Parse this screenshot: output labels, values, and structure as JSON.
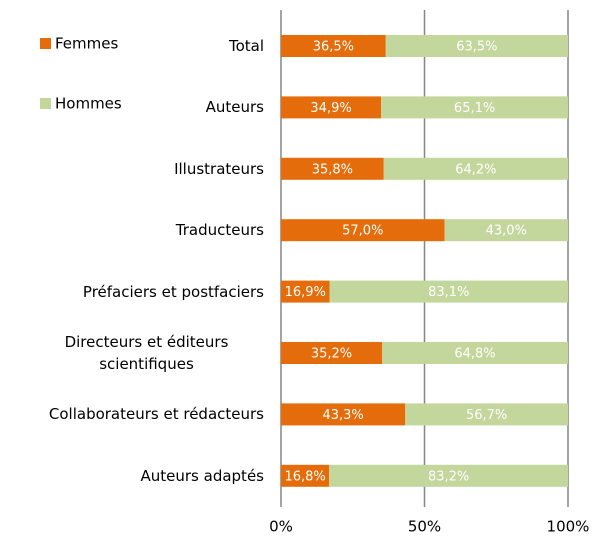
{
  "chart_data": {
    "type": "stacked-bar-horizontal",
    "categories": [
      "Total",
      "Auteurs",
      "Illustrateurs",
      "Traducteurs",
      "Préfaciers et postfaciers",
      "Directeurs et éditeurs scientifiques",
      "Collaborateurs et rédacteurs",
      "Auteurs adaptés"
    ],
    "series": [
      {
        "name": "Femmes",
        "color": "#e46c0a",
        "values": [
          36.5,
          34.9,
          35.8,
          57.0,
          16.9,
          35.2,
          43.3,
          16.8
        ],
        "value_labels": [
          "36,5%",
          "34,9%",
          "35,8%",
          "57,0%",
          "16,9%",
          "35,2%",
          "43,3%",
          "16,8%"
        ]
      },
      {
        "name": "Hommes",
        "color": "#c3d69b",
        "values": [
          63.5,
          65.1,
          64.2,
          43.0,
          83.1,
          64.8,
          56.7,
          83.2
        ],
        "value_labels": [
          "63,5%",
          "65,1%",
          "64,2%",
          "43,0%",
          "83,1%",
          "64,8%",
          "56,7%",
          "83,2%"
        ]
      }
    ],
    "xlim": [
      0,
      100
    ],
    "xticks": [
      {
        "value": 0,
        "label": "0%"
      },
      {
        "value": 50,
        "label": "50%"
      },
      {
        "value": 100,
        "label": "100%"
      }
    ],
    "grid": true,
    "legend": "top-left"
  }
}
